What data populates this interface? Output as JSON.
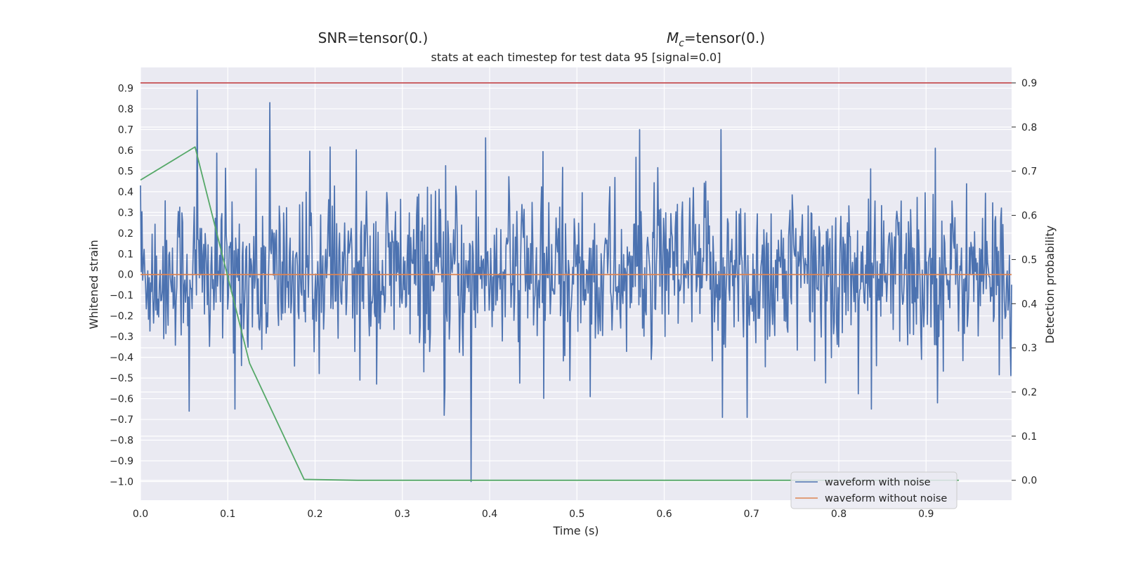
{
  "chart_data": {
    "type": "line",
    "suptitle_left": "SNR=tensor(0.)",
    "suptitle_right_prefix": "M",
    "suptitle_right_subscript": "c",
    "suptitle_right_suffix": "=tensor(0.)",
    "title": "stats at each timestep for test data 95 [signal=0.0]",
    "xlabel": "Time (s)",
    "ylabel": "Whitened strain",
    "y2label": "Detection probability",
    "xlim": [
      0.0,
      0.998
    ],
    "ylim": [
      -1.09,
      1.0
    ],
    "y2lim": [
      -0.045,
      0.935
    ],
    "x_ticks": [
      "0.0",
      "0.1",
      "0.2",
      "0.3",
      "0.4",
      "0.5",
      "0.6",
      "0.7",
      "0.8",
      "0.9"
    ],
    "y_ticks": [
      "0.9",
      "0.8",
      "0.7",
      "0.6",
      "0.5",
      "0.4",
      "0.3",
      "0.2",
      "0.1",
      "0.0",
      "−0.1",
      "−0.2",
      "−0.3",
      "−0.4",
      "−0.5",
      "−0.6",
      "−0.7",
      "−0.8",
      "−0.9",
      "−1.0"
    ],
    "y2_ticks": [
      "0.9",
      "0.8",
      "0.7",
      "0.6",
      "0.5",
      "0.4",
      "0.3",
      "0.2",
      "0.1",
      "0.0"
    ],
    "grid": true,
    "legend_position": "lower-right",
    "legend": [
      "waveform with noise",
      "waveform without noise"
    ],
    "colors": {
      "noisy": "#4c72b0",
      "clean": "#dd8452",
      "probability": "#55a868",
      "threshold": "#c44e52",
      "plot_bg": "#eaeaf2",
      "grid": "#ffffff"
    },
    "series": [
      {
        "name": "waveform with noise",
        "axis": "left",
        "sample_count": 1200,
        "value_range": [
          -1.0,
          0.89
        ],
        "peaks": [
          [
            0.065,
            0.89
          ],
          [
            0.148,
            0.83
          ],
          [
            0.572,
            0.7
          ],
          [
            0.665,
            0.7
          ],
          [
            0.0,
            0.43
          ],
          [
            0.379,
            -1.0
          ],
          [
            0.056,
            -0.66
          ],
          [
            0.667,
            -0.69
          ],
          [
            0.695,
            -0.69
          ],
          [
            0.837,
            -0.65
          ],
          [
            0.348,
            -0.68
          ],
          [
            0.913,
            -0.62
          ],
          [
            0.911,
            0.61
          ],
          [
            0.395,
            0.66
          ],
          [
            0.108,
            -0.65
          ]
        ]
      },
      {
        "name": "waveform without noise",
        "axis": "left",
        "x": [
          0.0,
          0.998
        ],
        "values": [
          0.0,
          0.0
        ]
      },
      {
        "name": "",
        "axis": "right",
        "x": [
          0.0,
          0.0625,
          0.125,
          0.1875,
          0.25,
          0.3125,
          0.375,
          0.4375,
          0.5,
          0.5625,
          0.625,
          0.6875,
          0.75,
          0.8125,
          0.875,
          0.9375
        ],
        "values": [
          0.68,
          0.755,
          0.265,
          0.002,
          0.0,
          0.0,
          0.0,
          0.0,
          0.0,
          0.0,
          0.0,
          0.0,
          0.0,
          0.0,
          0.0,
          0.0
        ]
      },
      {
        "name": "",
        "axis": "right",
        "x": [
          0.0,
          0.998
        ],
        "values": [
          0.9,
          0.9
        ]
      }
    ]
  }
}
